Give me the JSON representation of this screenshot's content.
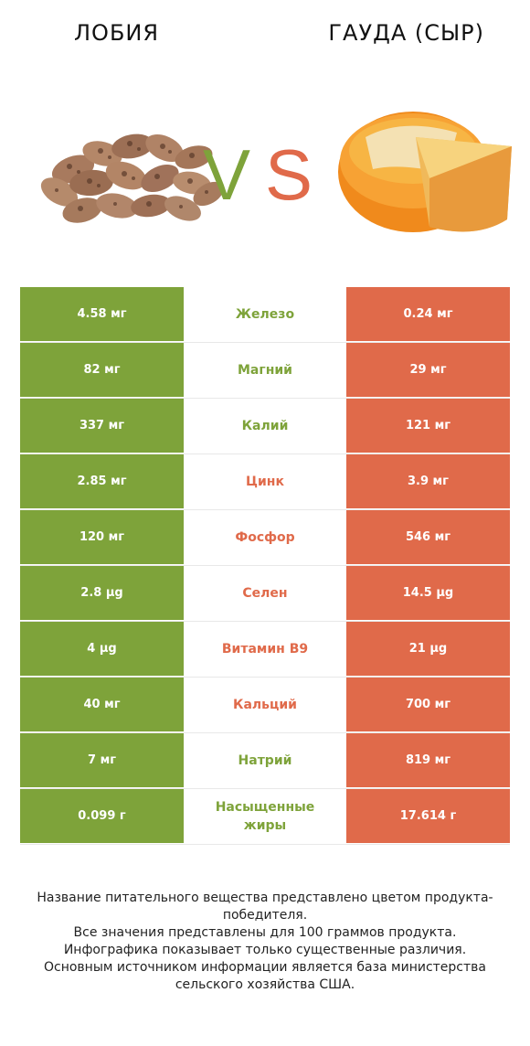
{
  "header": {
    "left_title": "ЛОБИЯ",
    "right_title": "ГАУДА (СЫР)",
    "vs_v": "V",
    "vs_s": "S"
  },
  "colors": {
    "left": "#7ea33a",
    "right": "#e06a4a",
    "green_text": "#7ea33a",
    "red_text": "#e06a4a"
  },
  "rows": [
    {
      "left": "4.58 мг",
      "label": "Железо",
      "right": "0.24 мг",
      "winner": "left"
    },
    {
      "left": "82 мг",
      "label": "Магний",
      "right": "29 мг",
      "winner": "left"
    },
    {
      "left": "337 мг",
      "label": "Калий",
      "right": "121 мг",
      "winner": "left"
    },
    {
      "left": "2.85 мг",
      "label": "Цинк",
      "right": "3.9 мг",
      "winner": "right"
    },
    {
      "left": "120 мг",
      "label": "Фосфор",
      "right": "546 мг",
      "winner": "right"
    },
    {
      "left": "2.8 µg",
      "label": "Селен",
      "right": "14.5 µg",
      "winner": "right"
    },
    {
      "left": "4 µg",
      "label": "Витамин B9",
      "right": "21 µg",
      "winner": "right"
    },
    {
      "left": "40 мг",
      "label": "Кальций",
      "right": "700 мг",
      "winner": "right"
    },
    {
      "left": "7 мг",
      "label": "Натрий",
      "right": "819 мг",
      "winner": "left"
    },
    {
      "left": "0.099 г",
      "label": "Насыщенные жиры",
      "right": "17.614 г",
      "winner": "left"
    }
  ],
  "footer": {
    "line1": "Название питательного вещества представлено цветом продукта-победителя.",
    "line2": "Все значения представлены для 100 граммов продукта.",
    "line3": "Инфографика показывает только существенные различия.",
    "line4": "Основным источником информации является база министерства сельского хозяйства США."
  }
}
